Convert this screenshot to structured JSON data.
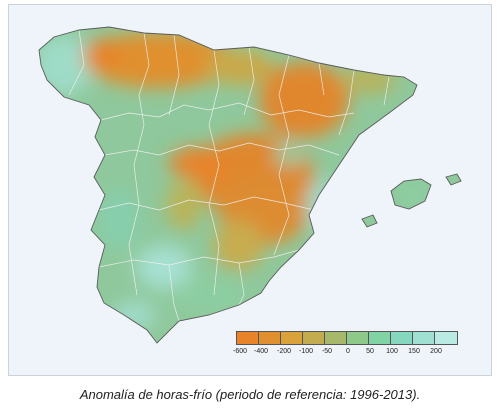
{
  "caption": "Anomalía de horas-frío (periodo de referencia: 1996-2013).",
  "legend": {
    "labels": [
      "-600",
      "-400",
      "-200",
      "-100",
      "-50",
      "0",
      "50",
      "100",
      "150",
      "200"
    ],
    "colors": [
      "#e8832a",
      "#e1902f",
      "#d9a23a",
      "#c3ab4f",
      "#a6b86a",
      "#8ec98a",
      "#82d3a3",
      "#85d8bd",
      "#9fe0d3",
      "#b9ebe4"
    ]
  },
  "colors": {
    "land_base": "#8fc89c",
    "sea": "#eef4f9",
    "anomaly_negative": "#e08a34",
    "anomaly_mild_negative": "#b9b45a",
    "anomaly_positive": "#9ad8c6",
    "borders": "#f4f4f4"
  }
}
